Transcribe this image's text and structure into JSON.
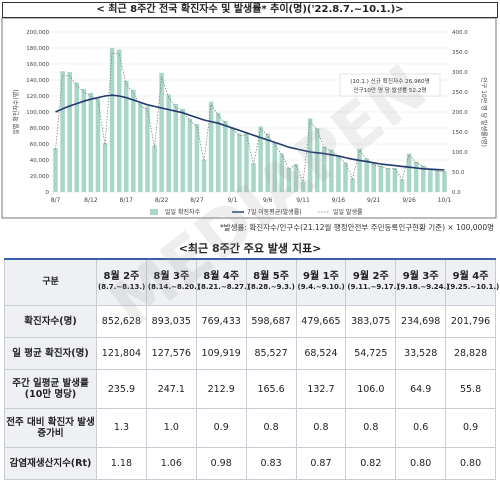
{
  "header": {
    "title": "< 최근 8주간 전국 확진자수 및 발생률* 추이(명)('22.8.7.~10.1.)>"
  },
  "chart_data": {
    "type": "bar",
    "bar_color": "#a8d6c8",
    "line_color": "#1f3a6e",
    "dotted_color": "#777777",
    "left_axis": {
      "label": "일별 확진자수(명)",
      "ylim": [
        0,
        200000
      ],
      "ticks": [
        0,
        20000,
        40000,
        60000,
        80000,
        100000,
        120000,
        140000,
        160000,
        180000,
        200000
      ],
      "tick_labels": [
        "0",
        "20,000",
        "40,000",
        "60,000",
        "80,000",
        "100,000",
        "120,000",
        "140,000",
        "160,000",
        "180,000",
        "200,000"
      ]
    },
    "right_axis": {
      "label": "인구 10만 명 당 발생률(명)",
      "ylim": [
        0,
        400
      ],
      "ticks": [
        0,
        50,
        100,
        150,
        200,
        250,
        300,
        350,
        400
      ],
      "tick_labels": [
        "0.0",
        "50.0",
        "100.0",
        "150.0",
        "200.0",
        "250.0",
        "300.0",
        "350.0",
        "400.0"
      ]
    },
    "x_tick_labels": [
      "8/7",
      "8/12",
      "8/17",
      "8/22",
      "8/27",
      "9/1",
      "9/6",
      "9/11",
      "9/16",
      "9/21",
      "9/26",
      "10/1"
    ],
    "x_tick_index": [
      0,
      5,
      10,
      15,
      20,
      25,
      30,
      35,
      40,
      45,
      50,
      55
    ],
    "daily_confirmed": [
      55000,
      151000,
      150000,
      137000,
      129000,
      124000,
      118000,
      61000,
      180000,
      178000,
      139000,
      128000,
      111000,
      107000,
      58000,
      149000,
      122000,
      110000,
      104000,
      92000,
      85000,
      40000,
      113000,
      99000,
      89000,
      81000,
      73000,
      74000,
      36000,
      82000,
      73000,
      61000,
      48000,
      30000,
      35000,
      13000,
      92000,
      80000,
      57000,
      53000,
      46000,
      37000,
      17000,
      54000,
      42000,
      35000,
      33000,
      30000,
      30000,
      16000,
      48000,
      38000,
      33000,
      29000,
      27000,
      26000
    ],
    "moving_avg_7day": [
      200,
      208,
      215,
      221,
      227,
      232,
      236,
      240,
      242,
      240,
      236,
      230,
      224,
      218,
      214,
      210,
      206,
      202,
      198,
      192,
      186,
      180,
      176,
      172,
      166,
      160,
      154,
      148,
      142,
      136,
      130,
      124,
      118,
      112,
      108,
      104,
      100,
      98,
      96,
      93,
      90,
      86,
      82,
      79,
      76,
      73,
      70,
      68,
      66,
      64,
      62,
      60,
      58,
      57,
      56,
      55
    ],
    "annotation": {
      "lines": [
        "(10.1.) 신규 확진자수 26,960명",
        "인구10만 명 당 발생률 52.2명"
      ]
    },
    "legend": [
      {
        "name": "일일 확진자수",
        "kind": "bar"
      },
      {
        "name": "7일 이동평균(발생률)",
        "kind": "line"
      },
      {
        "name": "일일 발생률",
        "kind": "dotted"
      }
    ],
    "footnote": "*발생률: 확진자수/인구수(21.12월 행정안전부 주민등록인구현황 기준) × 100,000명"
  },
  "table": {
    "title": "<최근 8주간 주요 발생 지표>",
    "corner": "구분",
    "weeks": [
      {
        "label": "8월 2주",
        "range": "(8.7.~8.13.)"
      },
      {
        "label": "8월 3주",
        "range": "(8.14.~8.20.)"
      },
      {
        "label": "8월 4주",
        "range": "(8.21.~8.27.)"
      },
      {
        "label": "8월 5주",
        "range": "(8.28.~9.3.)"
      },
      {
        "label": "9월 1주",
        "range": "(9.4.~9.10.)"
      },
      {
        "label": "9월 2주",
        "range": "(9.11.~9.17.)"
      },
      {
        "label": "9월 3주",
        "range": "(9.18.~9.24.)"
      },
      {
        "label": "9월 4주",
        "range": "(9.25.~10.1.)"
      }
    ],
    "rows": [
      {
        "label": "확진자수(명)",
        "values": [
          "852,628",
          "893,035",
          "769,433",
          "598,687",
          "479,665",
          "383,075",
          "234,698",
          "201,796"
        ]
      },
      {
        "label": "일 평균 확진자(명)",
        "values": [
          "121,804",
          "127,576",
          "109,919",
          "85,527",
          "68,524",
          "54,725",
          "33,528",
          "28,828"
        ]
      },
      {
        "label": "주간 일평균 발생률(10만 명당)",
        "values": [
          "235.9",
          "247.1",
          "212.9",
          "165.6",
          "132.7",
          "106.0",
          "64.9",
          "55.8"
        ]
      },
      {
        "label": "전주 대비 확진자 발생 증가비",
        "values": [
          "1.3",
          "1.0",
          "0.9",
          "0.8",
          "0.8",
          "0.8",
          "0.6",
          "0.9"
        ]
      },
      {
        "label": "감염재생산지수(Rt)",
        "values": [
          "1.18",
          "1.06",
          "0.98",
          "0.83",
          "0.87",
          "0.82",
          "0.80",
          "0.80"
        ]
      }
    ]
  }
}
